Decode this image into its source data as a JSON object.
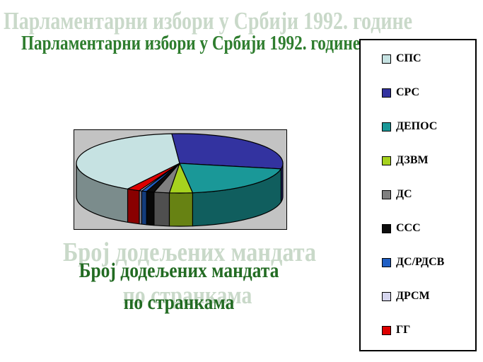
{
  "title": {
    "text": "Парламентарни избори у Србији 1992. године",
    "color": "#2e7d2e",
    "echo_color": "#c9d9c9"
  },
  "subtitle": {
    "line1": "Број додељених мандата",
    "line2": "по странкама",
    "color": "#226b22",
    "echo_color": "#c9d9c9"
  },
  "plot": {
    "background": "#c3c3c3",
    "border_color": "#000000"
  },
  "chart_data": {
    "type": "pie",
    "style": "3d",
    "title": "Број додељених мандата по странкама",
    "legend_position": "right",
    "direction": "clockwise",
    "start_angle_deg": 210.2,
    "total": 250,
    "units": "мандати",
    "slices": [
      {
        "label": "СПС",
        "value": 101,
        "color": "#c6e2e2"
      },
      {
        "label": "СРС",
        "value": 73,
        "color": "#3333a0"
      },
      {
        "label": "ДЕПОС",
        "value": 50,
        "color": "#1a9898"
      },
      {
        "label": "ДЗВМ",
        "value": 9,
        "color": "#a6d21e"
      },
      {
        "label": "ДС",
        "value": 6,
        "color": "#7f7f7f"
      },
      {
        "label": "ССС",
        "value": 3,
        "color": "#0d0d0d"
      },
      {
        "label": "ДС/РДСВ",
        "value": 2,
        "color": "#1f5fc4"
      },
      {
        "label": "ДРСМ",
        "value": 1,
        "color": "#d6d6ee"
      },
      {
        "label": "ГГ",
        "value": 5,
        "color": "#dd0000"
      }
    ]
  }
}
